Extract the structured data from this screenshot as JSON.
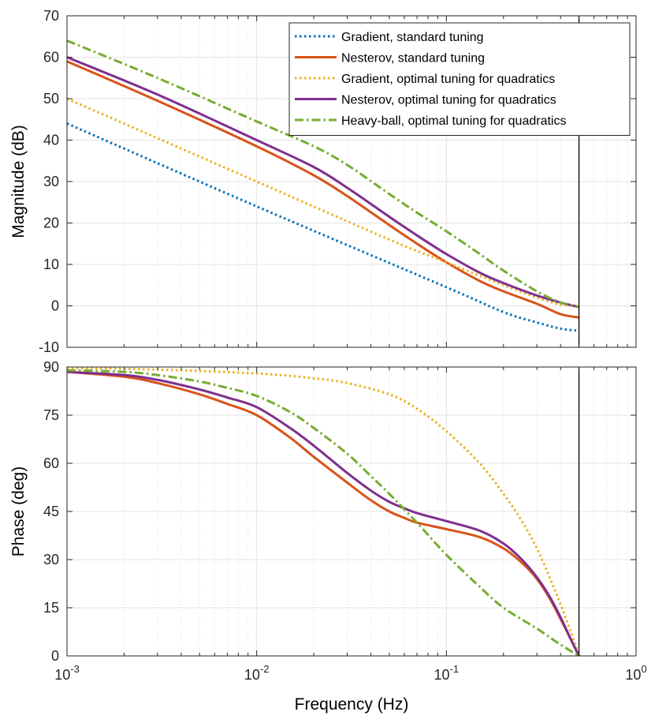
{
  "chart_data": [
    {
      "type": "line",
      "panel": "magnitude",
      "title": "",
      "xlabel": "",
      "ylabel": "Magnitude (dB)",
      "xscale": "log",
      "xlim": [
        0.001,
        1
      ],
      "ylim": [
        -10,
        70
      ],
      "yticks": [
        -10,
        0,
        10,
        20,
        30,
        40,
        50,
        60,
        70
      ],
      "ytick_labels": [
        "-10",
        "0",
        "10",
        "20",
        "30",
        "40",
        "50",
        "60",
        "70"
      ],
      "grid": true,
      "vline_x": 0.5,
      "legend_position": "top-right",
      "series": [
        {
          "name": "Gradient, standard tuning",
          "color": "#0072BD",
          "style": "dotted",
          "x": [
            0.001,
            0.01,
            0.1,
            0.2,
            0.3,
            0.4,
            0.5
          ],
          "y": [
            44,
            24,
            4.5,
            -1.5,
            -4,
            -5.5,
            -6
          ]
        },
        {
          "name": "Nesterov, standard tuning",
          "color": "#D95319",
          "style": "solid",
          "x": [
            0.001,
            0.003,
            0.01,
            0.02,
            0.03,
            0.05,
            0.07,
            0.1,
            0.15,
            0.2,
            0.3,
            0.4,
            0.5
          ],
          "y": [
            59,
            49.5,
            38.5,
            31.5,
            26.5,
            19.5,
            15,
            10.5,
            6,
            3.5,
            0.5,
            -2,
            -2.8
          ]
        },
        {
          "name": "Gradient, optimal tuning for quadratics",
          "color": "#EDB120",
          "style": "dotted",
          "x": [
            0.001,
            0.01,
            0.05,
            0.1,
            0.2,
            0.3,
            0.4,
            0.5
          ],
          "y": [
            50,
            30,
            16,
            10.5,
            5,
            2,
            0.3,
            0
          ]
        },
        {
          "name": "Nesterov, optimal tuning for quadratics",
          "color": "#7E2F8E",
          "style": "solid",
          "x": [
            0.001,
            0.003,
            0.01,
            0.02,
            0.03,
            0.05,
            0.07,
            0.1,
            0.15,
            0.2,
            0.3,
            0.4,
            0.5
          ],
          "y": [
            60,
            51,
            40,
            33.5,
            28.5,
            21.5,
            17,
            12.5,
            8,
            5.5,
            2.5,
            0.8,
            -0.3
          ]
        },
        {
          "name": "Heavy-ball, optimal tuning for quadratics",
          "color": "#77AC30",
          "style": "dashdot",
          "x": [
            0.001,
            0.003,
            0.01,
            0.02,
            0.03,
            0.05,
            0.07,
            0.1,
            0.15,
            0.2,
            0.3,
            0.4,
            0.5
          ],
          "y": [
            64,
            55,
            44.5,
            38.5,
            34,
            27,
            22.5,
            18,
            12.5,
            8.5,
            3.5,
            0.8,
            -0.2
          ]
        }
      ]
    },
    {
      "type": "line",
      "panel": "phase",
      "title": "",
      "xlabel": "Frequency  (Hz)",
      "ylabel": "Phase (deg)",
      "xscale": "log",
      "xlim": [
        0.001,
        1
      ],
      "ylim": [
        0,
        90
      ],
      "yticks": [
        0,
        15,
        30,
        45,
        60,
        75,
        90
      ],
      "ytick_labels": [
        "0",
        "15",
        "30",
        "45",
        "60",
        "75",
        "90"
      ],
      "xticks": [
        0.001,
        0.01,
        0.1,
        1
      ],
      "xtick_labels": [
        {
          "base": "10",
          "exp": "-3"
        },
        {
          "base": "10",
          "exp": "-2"
        },
        {
          "base": "10",
          "exp": "-1"
        },
        {
          "base": "10",
          "exp": "0"
        }
      ],
      "grid": true,
      "vline_x": 0.5,
      "series": [
        {
          "name": "Gradient, standard tuning",
          "color": "#0072BD",
          "style": "dotted",
          "x": [],
          "y": []
        },
        {
          "name": "Nesterov, standard tuning",
          "color": "#D95319",
          "style": "solid",
          "x": [
            0.001,
            0.002,
            0.003,
            0.005,
            0.007,
            0.01,
            0.015,
            0.02,
            0.03,
            0.04,
            0.05,
            0.06,
            0.07,
            0.1,
            0.15,
            0.2,
            0.25,
            0.3,
            0.35,
            0.4,
            0.45,
            0.5
          ],
          "y": [
            88.5,
            87,
            85,
            81.5,
            78.5,
            75,
            68,
            62,
            54,
            48.5,
            45,
            43,
            41.5,
            39.5,
            37,
            33.5,
            29,
            24,
            18,
            11.5,
            5.5,
            0
          ]
        },
        {
          "name": "Gradient, optimal tuning for quadratics",
          "color": "#EDB120",
          "style": "dotted",
          "x": [
            0.001,
            0.003,
            0.01,
            0.02,
            0.03,
            0.05,
            0.07,
            0.1,
            0.15,
            0.2,
            0.25,
            0.3,
            0.35,
            0.4,
            0.45,
            0.5
          ],
          "y": [
            89.7,
            89.2,
            88,
            86.5,
            85,
            81.5,
            77,
            70,
            60,
            50.5,
            42,
            33.5,
            24.5,
            16,
            8,
            0
          ]
        },
        {
          "name": "Nesterov, optimal tuning for quadratics",
          "color": "#7E2F8E",
          "style": "solid",
          "x": [
            0.001,
            0.002,
            0.003,
            0.005,
            0.007,
            0.01,
            0.015,
            0.02,
            0.03,
            0.04,
            0.05,
            0.06,
            0.07,
            0.1,
            0.15,
            0.2,
            0.25,
            0.3,
            0.35,
            0.4,
            0.45,
            0.5
          ],
          "y": [
            88.5,
            87.5,
            86,
            83,
            80.5,
            77.5,
            71,
            65.5,
            57,
            51.5,
            48,
            46,
            44.5,
            42,
            39,
            35,
            30,
            24.5,
            18.5,
            12,
            5.5,
            0
          ]
        },
        {
          "name": "Heavy-ball, optimal tuning for quadratics",
          "color": "#77AC30",
          "style": "dashdot",
          "x": [
            0.001,
            0.002,
            0.003,
            0.005,
            0.007,
            0.01,
            0.015,
            0.02,
            0.03,
            0.04,
            0.05,
            0.07,
            0.1,
            0.15,
            0.2,
            0.3,
            0.4,
            0.5
          ],
          "y": [
            89,
            88.5,
            87.5,
            85.5,
            83.5,
            81,
            76,
            71,
            63,
            56,
            50.5,
            41.5,
            31.5,
            21.5,
            15,
            8.5,
            3.5,
            0
          ]
        }
      ]
    }
  ]
}
